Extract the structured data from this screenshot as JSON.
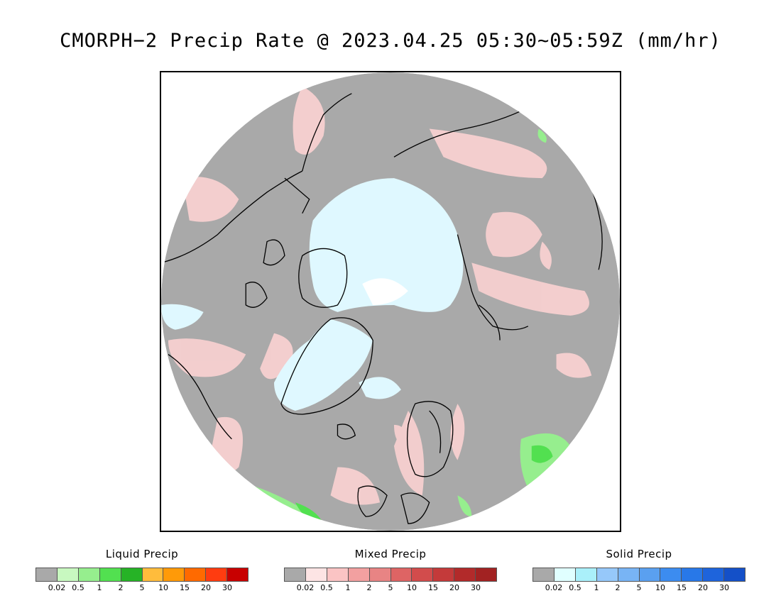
{
  "title": "CMORPH−2 Precip Rate @ 2023.04.25 05:30~05:59Z (mm/hr)",
  "map": {
    "projection": "polar-stereographic-north",
    "background_color": "#a9a9a9",
    "coastline_color": "#000000"
  },
  "legends": [
    {
      "title": "Liquid Precip",
      "colors": [
        "#a9a9a9",
        "#c8f8c0",
        "#96ee8e",
        "#52e050",
        "#26b326",
        "#ffbc3c",
        "#ff9a08",
        "#ff6a00",
        "#ff3c10",
        "#c80000"
      ],
      "ticks": [
        "0.02",
        "0.5",
        "1",
        "2",
        "5",
        "10",
        "15",
        "20",
        "30"
      ]
    },
    {
      "title": "Mixed Precip",
      "colors": [
        "#a9a9a9",
        "#fde4e4",
        "#fbc4c4",
        "#f2a0a0",
        "#e88484",
        "#de6464",
        "#d24c4c",
        "#c43a3a",
        "#b22a2a",
        "#a22222"
      ],
      "ticks": [
        "0.02",
        "0.5",
        "1",
        "2",
        "5",
        "10",
        "15",
        "20",
        "30"
      ]
    },
    {
      "title": "Solid Precip",
      "colors": [
        "#a9a9a9",
        "#e0ffff",
        "#aaf0fa",
        "#96c8fa",
        "#78b4f5",
        "#5aa0f0",
        "#3c8cf0",
        "#2878e8",
        "#1e64dc",
        "#1450c8"
      ],
      "ticks": [
        "0.02",
        "0.5",
        "1",
        "2",
        "5",
        "10",
        "15",
        "20",
        "30"
      ]
    }
  ]
}
